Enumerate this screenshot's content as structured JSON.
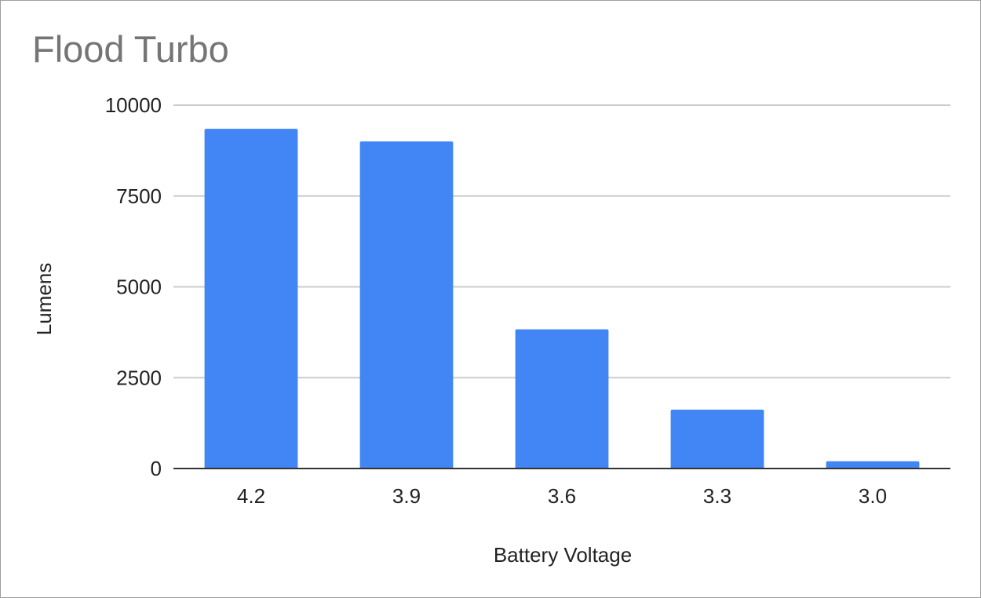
{
  "chart_data": {
    "type": "bar",
    "title": "Flood Turbo",
    "xlabel": "Battery Voltage",
    "ylabel": "Lumens",
    "categories": [
      "4.2",
      "3.9",
      "3.6",
      "3.3",
      "3.0"
    ],
    "values": [
      9350,
      9000,
      3830,
      1620,
      200
    ],
    "ylim": [
      0,
      10000
    ],
    "yticks": [
      "0",
      "2500",
      "5000",
      "7500",
      "10000"
    ],
    "grid": true,
    "legend": "none",
    "colors": {
      "bar": "#4285f4",
      "grid": "#cccccc",
      "axis": "#333333",
      "title": "#757575",
      "text": "#222222"
    }
  }
}
